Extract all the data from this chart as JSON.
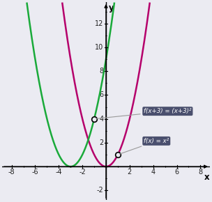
{
  "title": "",
  "xlim": [
    -8.8,
    8.8
  ],
  "ylim": [
    -2.8,
    13.8
  ],
  "xticks": [
    -8,
    -6,
    -4,
    -2,
    2,
    4,
    6,
    8
  ],
  "yticks": [
    -2,
    2,
    4,
    6,
    8,
    10,
    12
  ],
  "xlabel": "x",
  "ylabel": "y",
  "curve_magenta_color": "#b5006b",
  "curve_green_color": "#1aaa3a",
  "open_circle_green": [
    -1,
    4
  ],
  "open_circle_magenta": [
    1,
    1
  ],
  "legend_box_color": "#4a4f6e",
  "legend_text_color": "#ffffff",
  "legend1_label": "f(x+3) = (x+3)²",
  "legend2_label": "f(x) = x²",
  "grid_color": "#c8c8d8",
  "background_color": "#ebebf2",
  "connector_color": "#999999"
}
